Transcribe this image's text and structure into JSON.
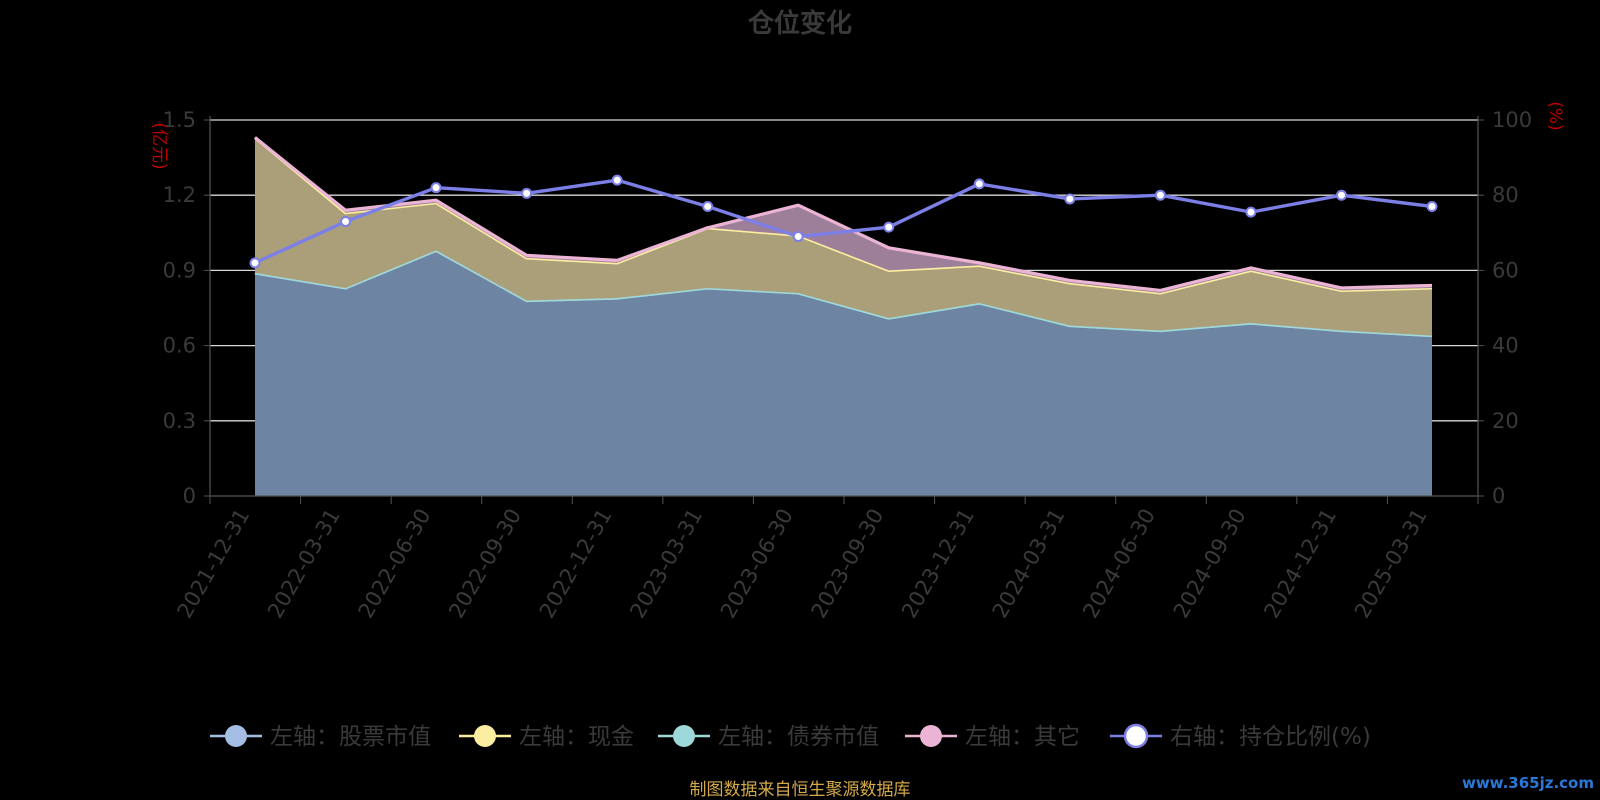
{
  "chart_data": {
    "type": "area",
    "title": "仓位变化",
    "left_unit": "(亿元)",
    "right_unit": "(%)",
    "categories": [
      "2021-12-31",
      "2022-03-31",
      "2022-06-30",
      "2022-09-30",
      "2022-12-31",
      "2023-03-31",
      "2023-06-30",
      "2023-09-30",
      "2023-12-31",
      "2024-03-31",
      "2024-06-30",
      "2024-09-30",
      "2024-12-31",
      "2025-03-31"
    ],
    "y_left": {
      "min": 0,
      "max": 1.5,
      "ticks": [
        "0",
        "0.3",
        "0.6",
        "0.9",
        "1.2",
        "1.5"
      ]
    },
    "y_right": {
      "min": 0,
      "max": 100,
      "ticks": [
        "0",
        "20",
        "40",
        "60",
        "80",
        "100"
      ]
    },
    "grid": true,
    "stack_order": [
      "股票市值",
      "债券市值",
      "现金",
      "其它"
    ],
    "series": [
      {
        "name": "左轴：股票市值",
        "key": "股票市值",
        "axis": "left",
        "color": "#a3bde3",
        "fill": "#6e84a3",
        "values": [
          0.89,
          0.83,
          0.98,
          0.78,
          0.79,
          0.83,
          0.81,
          0.71,
          0.77,
          0.68,
          0.66,
          0.69,
          0.66,
          0.64
        ]
      },
      {
        "name": "左轴：现金",
        "key": "现金",
        "axis": "left",
        "color": "#fceea0",
        "fill": "#ab9f7a",
        "values": [
          0.54,
          0.3,
          0.19,
          0.17,
          0.14,
          0.24,
          0.23,
          0.19,
          0.15,
          0.17,
          0.15,
          0.21,
          0.16,
          0.19
        ]
      },
      {
        "name": "左轴：债券市值",
        "key": "债券市值",
        "axis": "left",
        "color": "#9ed9d9",
        "fill": "#6a9a9a",
        "values": [
          0,
          0,
          0,
          0,
          0,
          0,
          0,
          0,
          0,
          0,
          0,
          0,
          0,
          0
        ]
      },
      {
        "name": "左轴：其它",
        "key": "其它",
        "axis": "left",
        "color": "#ebb4d4",
        "fill": "#9e7f9a",
        "values": [
          0.0,
          0.01,
          0.01,
          0.01,
          0.01,
          0.0,
          0.12,
          0.09,
          0.01,
          0.01,
          0.01,
          0.01,
          0.01,
          0.01
        ]
      },
      {
        "name": "右轴：持仓比例(%)",
        "key": "持仓比例",
        "axis": "right",
        "color": "#7b7fe6",
        "values": [
          62,
          73,
          82,
          80.5,
          84,
          77,
          69,
          71.5,
          83,
          79,
          80,
          75.5,
          80,
          77
        ]
      }
    ],
    "legend_position": "bottom"
  },
  "source_note": "制图数据来自恒生聚源数据库",
  "watermark": "www.365jz.com"
}
